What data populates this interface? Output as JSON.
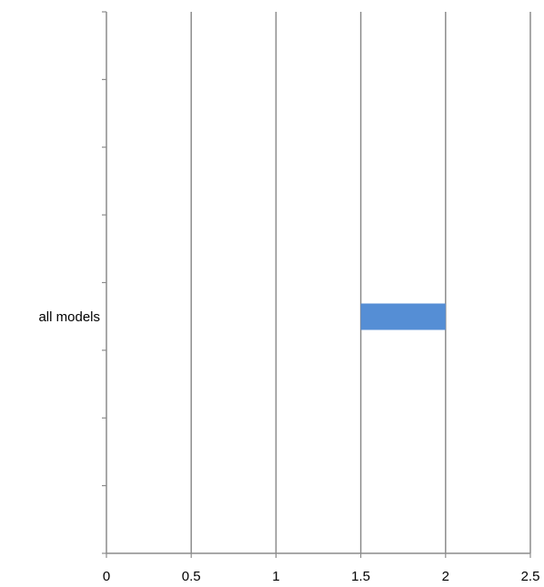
{
  "chart_data": {
    "type": "bar",
    "orientation": "horizontal",
    "stacked": true,
    "categories": [
      "all models"
    ],
    "series": [
      {
        "values": [
          1.5
        ],
        "color": "none"
      },
      {
        "values": [
          0.5
        ],
        "color": "#558ED5"
      }
    ],
    "xlim": [
      0,
      2.5
    ],
    "xticks": [
      "0",
      "0.5",
      "1",
      "1.5",
      "2",
      "2.5"
    ],
    "grid": "vertical",
    "legend": "none",
    "title": "",
    "xlabel": "",
    "ylabel": ""
  }
}
